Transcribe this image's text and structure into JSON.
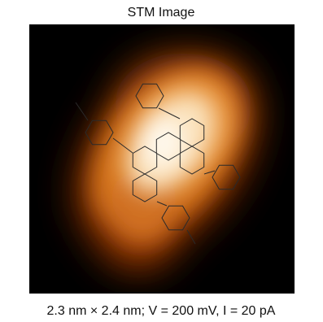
{
  "header": {
    "title": "STM Image"
  },
  "caption": "2.3 nm × 2.4 nm; V = 200 mV, I = 20 pA"
}
